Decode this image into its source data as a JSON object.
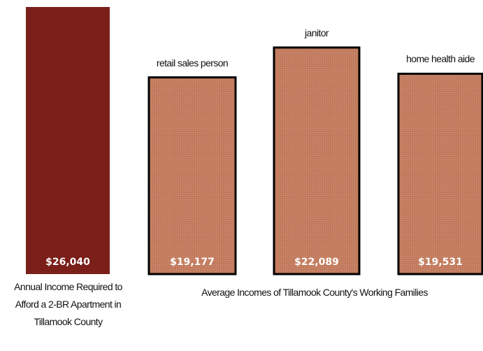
{
  "chart_data": {
    "type": "bar",
    "categories": [
      null,
      "retail sales person",
      "janitor",
      "home health aide"
    ],
    "values": [
      26040,
      19177,
      22089,
      19531
    ],
    "value_labels": [
      "$26,040",
      "$19,177",
      "$22,089",
      "$19,531"
    ],
    "colors": [
      "#7a1f1a",
      "#c27a5c",
      "#c27a5c",
      "#c27a5c"
    ],
    "captions": [
      "Annual Income Required to Afford a 2-BR Apartment in Tillamook County",
      "Average Incomes of Tillamook County's Working Families"
    ]
  }
}
